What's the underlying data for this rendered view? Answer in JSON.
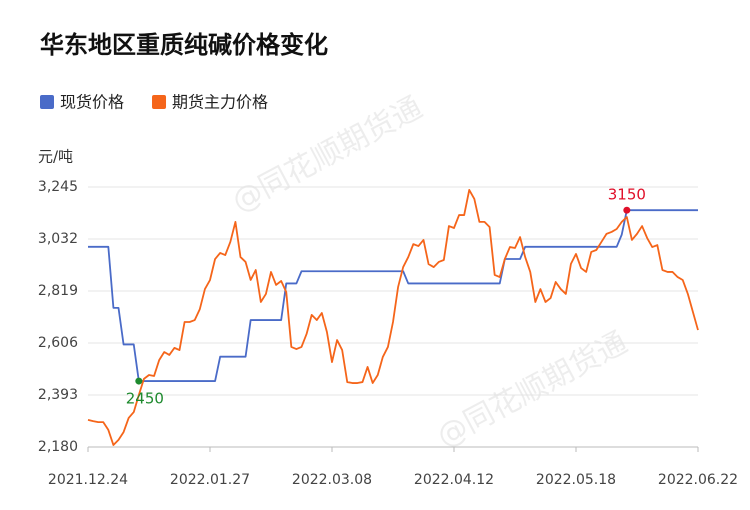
{
  "chart_data": {
    "type": "line",
    "title": "华东地区重质纯碱价格变化",
    "y_label": "元/吨",
    "watermark": "@同花顺期货通",
    "categories": [
      "2021.12.24",
      null,
      null,
      null,
      null,
      null,
      null,
      null,
      null,
      null,
      null,
      null,
      null,
      null,
      null,
      null,
      null,
      null,
      null,
      null,
      null,
      null,
      null,
      null,
      "2022.01.27",
      null,
      null,
      null,
      null,
      null,
      null,
      null,
      null,
      null,
      null,
      null,
      null,
      null,
      null,
      null,
      null,
      null,
      null,
      null,
      null,
      null,
      null,
      null,
      "2022.03.08",
      null,
      null,
      null,
      null,
      null,
      null,
      null,
      null,
      null,
      null,
      null,
      null,
      null,
      null,
      null,
      null,
      null,
      null,
      null,
      null,
      null,
      null,
      null,
      "2022.04.12",
      null,
      null,
      null,
      null,
      null,
      null,
      null,
      null,
      null,
      null,
      null,
      null,
      null,
      null,
      null,
      null,
      null,
      null,
      null,
      null,
      null,
      null,
      null,
      "2022.05.18",
      null,
      null,
      null,
      null,
      null,
      null,
      null,
      null,
      null,
      null,
      null,
      null,
      null,
      null,
      null,
      null,
      null,
      null,
      null,
      null,
      null,
      null,
      null,
      "2022.06.22"
    ],
    "series": [
      {
        "name": "现货价格",
        "color": "#4a6bc8",
        "values": [
          3000,
          3000,
          3000,
          3000,
          3000,
          2750,
          2750,
          2600,
          2600,
          2600,
          2450,
          2450,
          2450,
          2450,
          2450,
          2450,
          2450,
          2450,
          2450,
          2450,
          2450,
          2450,
          2450,
          2450,
          2450,
          2450,
          2550,
          2550,
          2550,
          2550,
          2550,
          2550,
          2700,
          2700,
          2700,
          2700,
          2700,
          2700,
          2700,
          2850,
          2850,
          2850,
          2900,
          2900,
          2900,
          2900,
          2900,
          2900,
          2900,
          2900,
          2900,
          2900,
          2900,
          2900,
          2900,
          2900,
          2900,
          2900,
          2900,
          2900,
          2900,
          2900,
          2900,
          2850,
          2850,
          2850,
          2850,
          2850,
          2850,
          2850,
          2850,
          2850,
          2850,
          2850,
          2850,
          2850,
          2850,
          2850,
          2850,
          2850,
          2850,
          2850,
          2950,
          2950,
          2950,
          2950,
          3000,
          3000,
          3000,
          3000,
          3000,
          3000,
          3000,
          3000,
          3000,
          3000,
          3000,
          3000,
          3000,
          3000,
          3000,
          3000,
          3000,
          3000,
          3000,
          3050,
          3150,
          3150,
          3150,
          3150,
          3150,
          3150,
          3150,
          3150,
          3150,
          3150,
          3150,
          3150,
          3150,
          3150,
          3150
        ]
      },
      {
        "name": "期货主力价格",
        "color": "#f5651a",
        "values": [
          2291,
          2286,
          2282,
          2282,
          2250,
          2188,
          2209,
          2241,
          2299,
          2323,
          2393,
          2459,
          2475,
          2471,
          2536,
          2569,
          2557,
          2586,
          2577,
          2692,
          2692,
          2700,
          2745,
          2827,
          2864,
          2950,
          2975,
          2966,
          3020,
          3102,
          2958,
          2938,
          2864,
          2905,
          2774,
          2807,
          2897,
          2844,
          2860,
          2815,
          2590,
          2581,
          2590,
          2643,
          2721,
          2700,
          2729,
          2651,
          2528,
          2618,
          2577,
          2446,
          2442,
          2442,
          2446,
          2508,
          2442,
          2475,
          2549,
          2590,
          2692,
          2835,
          2917,
          2958,
          3011,
          3003,
          3028,
          2929,
          2917,
          2938,
          2946,
          3085,
          3077,
          3130,
          3130,
          3233,
          3196,
          3102,
          3102,
          3081,
          2885,
          2876,
          2950,
          2999,
          2995,
          3040,
          2958,
          2897,
          2774,
          2827,
          2774,
          2790,
          2856,
          2827,
          2807,
          2930,
          2971,
          2913,
          2897,
          2979,
          2987,
          3020,
          3053,
          3061,
          3073,
          3102,
          3122,
          3028,
          3053,
          3085,
          3036,
          2999,
          3007,
          2905,
          2897,
          2897,
          2876,
          2864,
          2807,
          2733,
          2659
        ]
      }
    ],
    "annotations": [
      {
        "series": 0,
        "index": 10,
        "color": "#1e8a2e"
      },
      {
        "series": 0,
        "index": 106,
        "color": "#e0102a"
      }
    ],
    "ylim": [
      2180,
      3245
    ],
    "yticks": [
      {
        "value": 2180,
        "label": "2,180"
      },
      {
        "value": 2393,
        "label": "2,393"
      },
      {
        "value": 2606,
        "label": "2,606"
      },
      {
        "value": 2819,
        "label": "2,819"
      },
      {
        "value": 3032,
        "label": "3,032"
      },
      {
        "value": 3245,
        "label": "3,245"
      }
    ],
    "grid": true,
    "legend": "top-left"
  }
}
